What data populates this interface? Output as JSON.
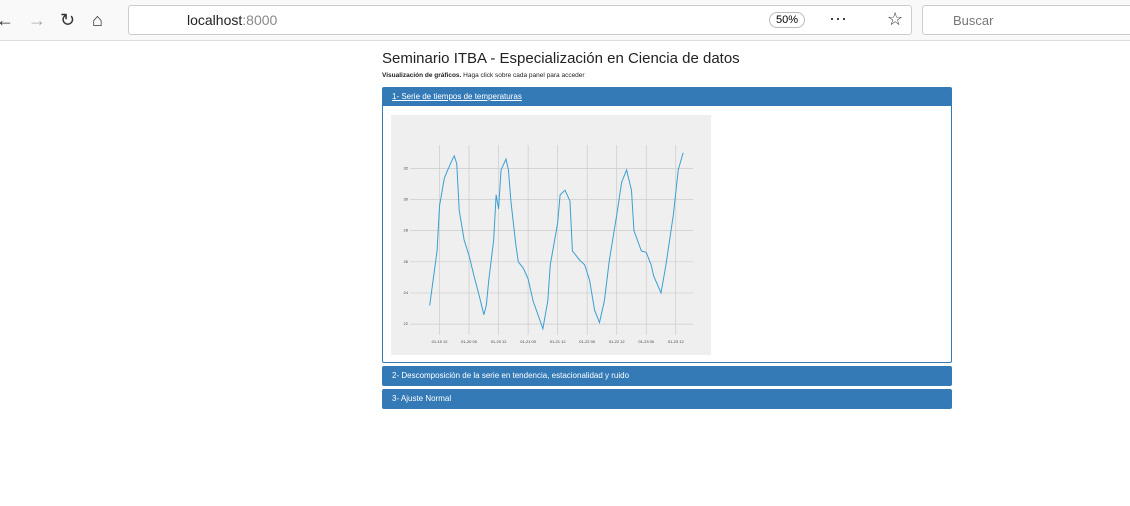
{
  "browser": {
    "url_host": "localhost",
    "url_port": ":8000",
    "zoom": "50%",
    "search_placeholder": "Buscar"
  },
  "page": {
    "title": "Seminario ITBA - Especialización en Ciencia de datos",
    "subtitle_bold": "Visualización de gráficos.",
    "subtitle_rest": "Haga click sobre cada panel para acceder",
    "panels": [
      "1- Serie de tiempos de temperaturas",
      "2- Descomposición de la serie en tendencia, estacionalidad y ruido",
      "3- Ajuste Normal"
    ]
  },
  "chart_data": {
    "type": "line",
    "x": [
      8,
      11,
      12,
      14,
      17,
      18,
      19,
      20,
      22,
      24,
      26,
      28,
      30,
      31,
      32,
      34,
      35,
      36,
      37,
      39,
      40,
      41,
      43,
      44,
      46,
      48,
      50,
      52,
      54,
      56,
      57,
      60,
      61,
      63,
      65,
      66,
      69,
      71,
      73,
      75,
      77,
      79,
      81,
      84,
      86,
      88,
      90,
      91,
      94,
      96,
      98,
      99,
      102,
      104,
      107,
      109,
      111
    ],
    "series": [
      {
        "color": "#3a9fd3",
        "values": [
          23.2,
          26.7,
          29.6,
          31.4,
          32.5,
          32.8,
          32.3,
          29.3,
          27.4,
          26.4,
          25.1,
          23.9,
          22.6,
          23.2,
          24.8,
          27.4,
          30.3,
          29.4,
          31.9,
          32.6,
          31.9,
          29.9,
          27.1,
          26.0,
          25.6,
          24.9,
          23.5,
          22.6,
          21.7,
          23.5,
          25.8,
          28.5,
          30.3,
          30.6,
          29.9,
          26.7,
          26.1,
          25.8,
          24.8,
          22.9,
          22.1,
          23.5,
          26.1,
          29.0,
          31.1,
          31.9,
          30.6,
          28.0,
          26.7,
          26.6,
          25.8,
          25.1,
          24.0,
          25.8,
          29.0,
          31.9,
          33.0
        ]
      }
    ],
    "xlim": [
      0,
      115
    ],
    "ylim": [
      21.3,
      33.5
    ],
    "xticks": [
      {
        "value": 12,
        "label": "01-19 12"
      },
      {
        "value": 24,
        "label": "01-20 00"
      },
      {
        "value": 36,
        "label": "01-20 12"
      },
      {
        "value": 48,
        "label": "01-21 00"
      },
      {
        "value": 60,
        "label": "01-21 12"
      },
      {
        "value": 72,
        "label": "01-22 00"
      },
      {
        "value": 84,
        "label": "01-22 12"
      },
      {
        "value": 96,
        "label": "01-23 00"
      },
      {
        "value": 108,
        "label": "01-23 12"
      }
    ],
    "yticks": [
      22,
      24,
      26,
      28,
      30,
      32
    ],
    "grid": true
  }
}
